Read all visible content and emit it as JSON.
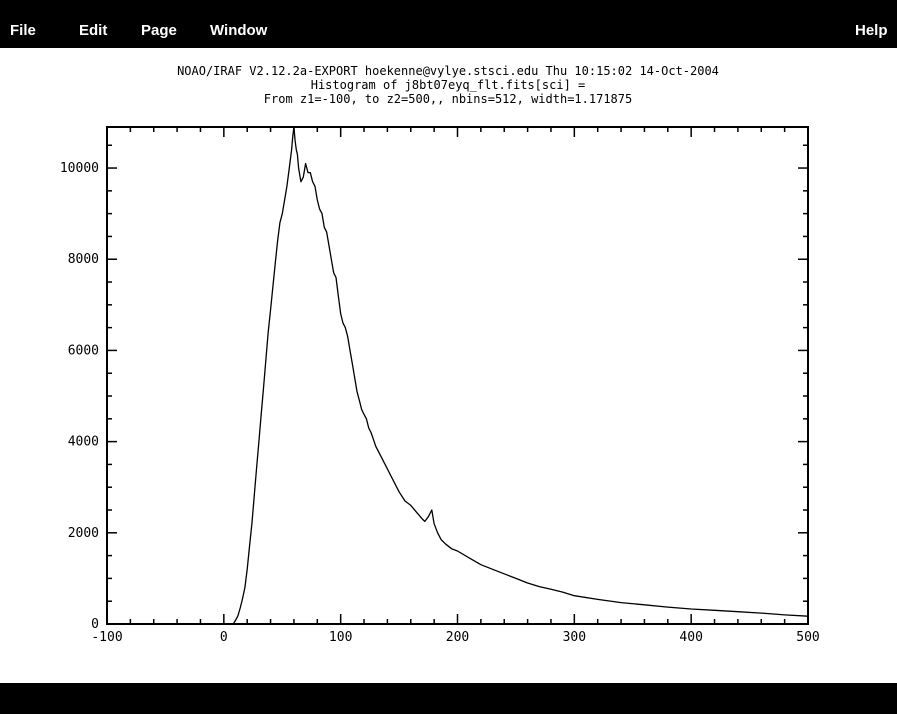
{
  "menu": {
    "file": "File",
    "edit": "Edit",
    "page": "Page",
    "window": "Window",
    "help": "Help"
  },
  "status": {
    "text": ""
  },
  "chart_data": {
    "type": "line",
    "title_lines": [
      "NOAO/IRAF V2.12.2a-EXPORT hoekenne@vylye.stsci.edu Thu 10:15:02 14-Oct-2004",
      "Histogram of j8bt07eyq_flt.fits[sci] =",
      "From z1=-100, to z2=500,, nbins=512, width=1.171875"
    ],
    "xlabel": "",
    "ylabel": "",
    "xlim": [
      -100,
      500
    ],
    "ylim": [
      0,
      10900
    ],
    "xticks": [
      -100,
      0,
      100,
      200,
      300,
      400,
      500
    ],
    "yticks": [
      0,
      2000,
      4000,
      6000,
      8000,
      10000
    ],
    "grid": false,
    "series": [
      {
        "x": [
          8,
          10,
          12,
          14,
          16,
          18,
          20,
          22,
          24,
          26,
          28,
          30,
          32,
          34,
          36,
          38,
          40,
          42,
          44,
          46,
          48,
          50,
          52,
          54,
          56,
          58,
          59,
          60,
          61,
          62,
          63,
          64,
          66,
          68,
          70,
          72,
          74,
          76,
          78,
          80,
          82,
          84,
          86,
          88,
          90,
          92,
          94,
          96,
          98,
          100,
          102,
          104,
          106,
          108,
          110,
          112,
          114,
          116,
          118,
          120,
          122,
          124,
          126,
          128,
          130,
          134,
          138,
          142,
          146,
          150,
          155,
          160,
          165,
          170,
          172,
          175,
          178,
          180,
          183,
          186,
          190,
          195,
          200,
          210,
          220,
          230,
          240,
          250,
          260,
          270,
          280,
          290,
          300,
          320,
          340,
          360,
          380,
          400,
          420,
          440,
          460,
          480,
          500
        ],
        "y": [
          0,
          80,
          180,
          350,
          550,
          800,
          1200,
          1700,
          2200,
          2800,
          3400,
          4000,
          4600,
          5200,
          5800,
          6400,
          6900,
          7400,
          7900,
          8400,
          8800,
          9000,
          9300,
          9600,
          10000,
          10400,
          10700,
          10900,
          10600,
          10400,
          10300,
          10000,
          9700,
          9800,
          10100,
          9900,
          9900,
          9700,
          9600,
          9300,
          9100,
          9000,
          8700,
          8600,
          8300,
          8000,
          7700,
          7600,
          7200,
          6800,
          6600,
          6500,
          6300,
          6000,
          5700,
          5400,
          5100,
          4900,
          4700,
          4600,
          4500,
          4300,
          4200,
          4050,
          3900,
          3700,
          3500,
          3300,
          3100,
          2900,
          2700,
          2600,
          2450,
          2300,
          2250,
          2350,
          2500,
          2200,
          2000,
          1850,
          1750,
          1650,
          1600,
          1450,
          1300,
          1200,
          1100,
          1000,
          900,
          820,
          760,
          700,
          620,
          540,
          470,
          420,
          370,
          330,
          300,
          270,
          240,
          200,
          170
        ]
      }
    ]
  }
}
